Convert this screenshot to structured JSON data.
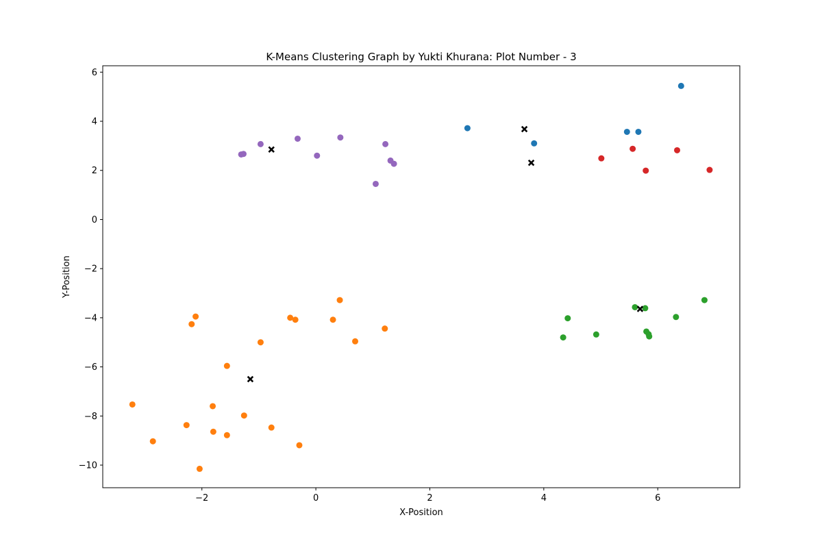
{
  "chart_data": {
    "type": "scatter",
    "title": "K-Means Clustering Graph by Yukti Khurana: Plot Number - 3",
    "xlabel": "X-Position",
    "ylabel": "Y-Position",
    "xlim": [
      -3.74,
      7.44
    ],
    "ylim": [
      -10.92,
      6.26
    ],
    "xticks": [
      -2,
      0,
      2,
      4,
      6
    ],
    "yticks": [
      -10,
      -8,
      -6,
      -4,
      -2,
      0,
      2,
      4,
      6
    ],
    "grid": false,
    "series": [
      {
        "name": "cluster-blue",
        "color": "#1f77b4",
        "points": [
          [
            2.66,
            3.72
          ],
          [
            3.83,
            3.1
          ],
          [
            5.46,
            3.57
          ],
          [
            5.66,
            3.57
          ],
          [
            6.41,
            5.44
          ]
        ]
      },
      {
        "name": "cluster-orange",
        "color": "#ff7f0e",
        "points": [
          [
            -3.22,
            -7.53
          ],
          [
            -2.86,
            -9.03
          ],
          [
            -2.27,
            -8.37
          ],
          [
            -2.18,
            -4.26
          ],
          [
            -2.11,
            -3.95
          ],
          [
            -2.04,
            -10.15
          ],
          [
            -1.81,
            -7.6
          ],
          [
            -1.8,
            -8.64
          ],
          [
            -1.56,
            -5.96
          ],
          [
            -1.56,
            -8.78
          ],
          [
            -1.26,
            -7.98
          ],
          [
            -0.97,
            -5.0
          ],
          [
            -0.78,
            -8.47
          ],
          [
            -0.45,
            -4.0
          ],
          [
            -0.36,
            -4.08
          ],
          [
            -0.29,
            -9.19
          ],
          [
            0.3,
            -4.08
          ],
          [
            0.42,
            -3.28
          ],
          [
            0.69,
            -4.96
          ],
          [
            1.21,
            -4.44
          ]
        ]
      },
      {
        "name": "cluster-green",
        "color": "#2ca02c",
        "points": [
          [
            4.34,
            -4.8
          ],
          [
            4.42,
            -4.02
          ],
          [
            4.92,
            -4.68
          ],
          [
            5.6,
            -3.57
          ],
          [
            5.78,
            -3.61
          ],
          [
            5.8,
            -4.56
          ],
          [
            5.84,
            -4.67
          ],
          [
            5.85,
            -4.76
          ],
          [
            6.32,
            -3.97
          ],
          [
            6.82,
            -3.28
          ]
        ]
      },
      {
        "name": "cluster-red",
        "color": "#d62728",
        "points": [
          [
            5.01,
            2.49
          ],
          [
            5.56,
            2.88
          ],
          [
            5.79,
            1.99
          ],
          [
            6.34,
            2.82
          ],
          [
            6.91,
            2.02
          ]
        ]
      },
      {
        "name": "cluster-purple",
        "color": "#9467bd",
        "points": [
          [
            -1.31,
            2.65
          ],
          [
            -1.27,
            2.67
          ],
          [
            -0.97,
            3.07
          ],
          [
            -0.32,
            3.29
          ],
          [
            0.02,
            2.6
          ],
          [
            0.43,
            3.34
          ],
          [
            1.05,
            1.45
          ],
          [
            1.22,
            3.07
          ],
          [
            1.31,
            2.4
          ],
          [
            1.37,
            2.27
          ]
        ]
      }
    ],
    "centroids": {
      "name": "centroids",
      "marker": "x",
      "color": "#000000",
      "points": [
        [
          -0.78,
          2.85
        ],
        [
          3.66,
          3.68
        ],
        [
          3.78,
          2.31
        ],
        [
          5.69,
          -3.64
        ],
        [
          -1.15,
          -6.5
        ]
      ]
    }
  }
}
